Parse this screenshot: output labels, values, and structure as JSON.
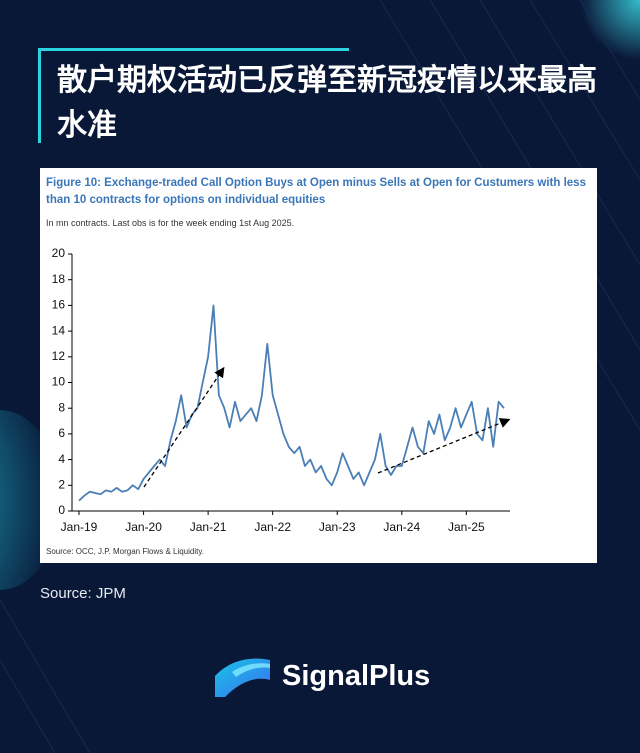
{
  "header": {
    "title": "散户期权活动已反弹至新冠疫情以来最高水准"
  },
  "chart_data": {
    "type": "line",
    "title": "Figure 10: Exchange-traded Call Option Buys at Open minus Sells at Open for Custumers with less than 10 contracts for options on individual equities",
    "subtitle": "In mn contracts. Last obs is for the week ending 1st Aug 2025.",
    "note": "Source: OCC, J.P. Morgan Flows & Liquidity.",
    "color": "#4a7fb5",
    "x": [
      "2019-01",
      "2019-02",
      "2019-03",
      "2019-04",
      "2019-05",
      "2019-06",
      "2019-07",
      "2019-08",
      "2019-09",
      "2019-10",
      "2019-11",
      "2019-12",
      "2020-01",
      "2020-02",
      "2020-03",
      "2020-04",
      "2020-05",
      "2020-06",
      "2020-07",
      "2020-08",
      "2020-09",
      "2020-10",
      "2020-11",
      "2020-12",
      "2021-01",
      "2021-02",
      "2021-03",
      "2021-04",
      "2021-05",
      "2021-06",
      "2021-07",
      "2021-08",
      "2021-09",
      "2021-10",
      "2021-11",
      "2021-12",
      "2022-01",
      "2022-02",
      "2022-03",
      "2022-04",
      "2022-05",
      "2022-06",
      "2022-07",
      "2022-08",
      "2022-09",
      "2022-10",
      "2022-11",
      "2022-12",
      "2023-01",
      "2023-02",
      "2023-03",
      "2023-04",
      "2023-05",
      "2023-06",
      "2023-07",
      "2023-08",
      "2023-09",
      "2023-10",
      "2023-11",
      "2023-12",
      "2024-01",
      "2024-02",
      "2024-03",
      "2024-04",
      "2024-05",
      "2024-06",
      "2024-07",
      "2024-08",
      "2024-09",
      "2024-10",
      "2024-11",
      "2024-12",
      "2025-01",
      "2025-02",
      "2025-03",
      "2025-04",
      "2025-05",
      "2025-06",
      "2025-07",
      "2025-08"
    ],
    "values": [
      0.8,
      1.2,
      1.5,
      1.4,
      1.3,
      1.6,
      1.5,
      1.8,
      1.5,
      1.6,
      2.0,
      1.7,
      2.5,
      3.0,
      3.5,
      4.0,
      3.5,
      5.5,
      7.0,
      9.0,
      6.5,
      7.5,
      8.0,
      10.0,
      12.0,
      16.0,
      9.0,
      8.0,
      6.5,
      8.5,
      7.0,
      7.5,
      8.0,
      7.0,
      9.0,
      13.0,
      9.0,
      7.5,
      6.0,
      5.0,
      4.5,
      5.0,
      3.5,
      4.0,
      3.0,
      3.5,
      2.5,
      2.0,
      3.0,
      4.5,
      3.5,
      2.5,
      3.0,
      2.0,
      3.0,
      4.0,
      6.0,
      3.5,
      2.8,
      3.5,
      3.5,
      5.0,
      6.5,
      5.0,
      4.5,
      7.0,
      6.0,
      7.5,
      5.5,
      6.5,
      8.0,
      6.5,
      7.5,
      8.5,
      6.0,
      5.5,
      8.0,
      5.0,
      8.5,
      8.0
    ],
    "xlim": [
      "2019-01",
      "2025-08"
    ],
    "xticks": [
      {
        "value": "2019-01",
        "label": "Jan-19"
      },
      {
        "value": "2020-01",
        "label": "Jan-20"
      },
      {
        "value": "2021-01",
        "label": "Jan-21"
      },
      {
        "value": "2022-01",
        "label": "Jan-22"
      },
      {
        "value": "2023-01",
        "label": "Jan-23"
      },
      {
        "value": "2024-01",
        "label": "Jan-24"
      },
      {
        "value": "2025-01",
        "label": "Jan-25"
      }
    ],
    "ylim": [
      0,
      20
    ],
    "yticks": [
      0,
      2,
      4,
      6,
      8,
      10,
      12,
      14,
      16,
      18,
      20
    ],
    "grid": false
  },
  "source": "Source: JPM",
  "brand": "SignalPlus"
}
